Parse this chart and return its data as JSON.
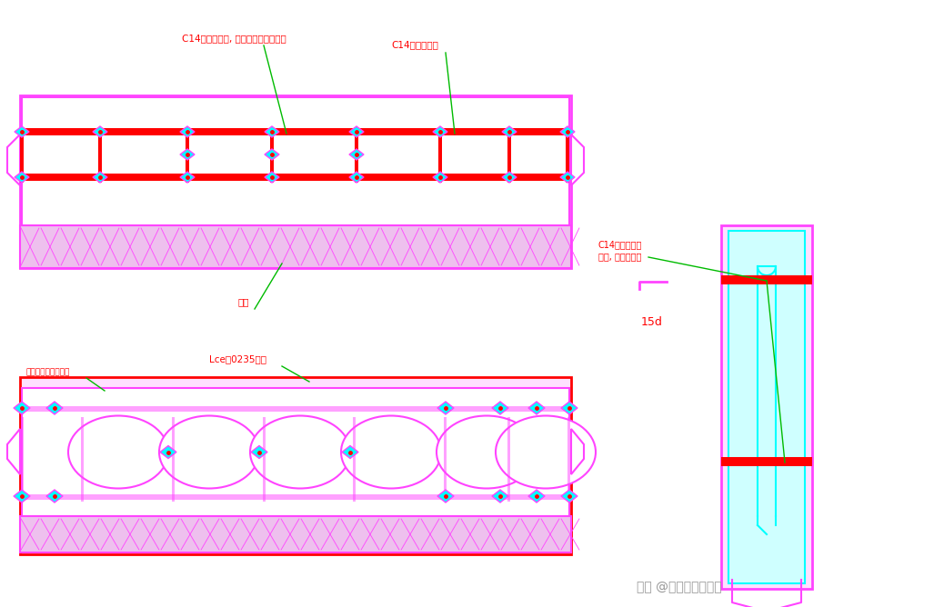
{
  "bg_color": "#ffffff",
  "mg": "#FF44FF",
  "rd": "#FF0000",
  "cy": "#00FFFF",
  "gn": "#00BB00",
  "lt_pink": "#FFE0FF",
  "label1": "C14第一类钢筋, 长度由计算确定筋长",
  "label2": "C14第二类钢筋",
  "label3": "间距",
  "label4": "Lce判0235钢筋",
  "label5": "直径为该处钢筋内径",
  "label6": "C14第二类钢筋",
  "label7": "间距, 与设计剧同",
  "label8": "15d",
  "watermark": "头条 @寓英才地产培训"
}
